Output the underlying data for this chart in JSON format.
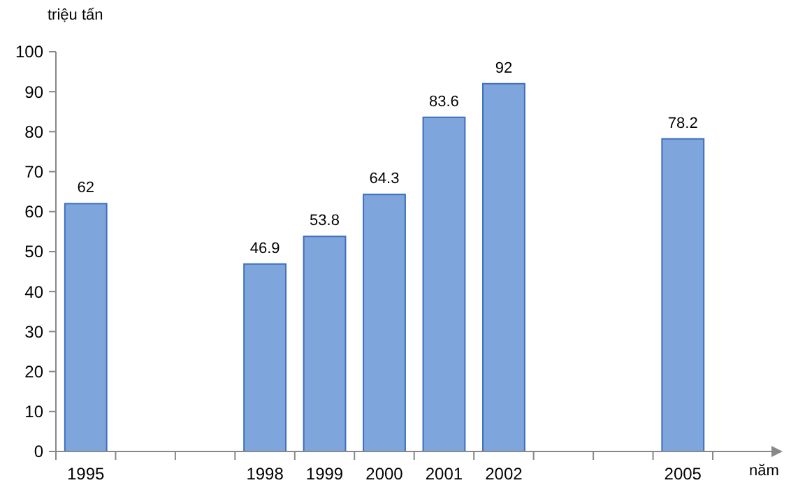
{
  "chart_data": {
    "type": "bar",
    "xlabel": "năm",
    "ylabel": "triệu tấn",
    "categories": [
      "1995",
      null,
      null,
      "1998",
      "1999",
      "2000",
      "2001",
      "2002",
      null,
      null,
      "2005"
    ],
    "values": [
      62,
      null,
      null,
      46.9,
      53.8,
      64.3,
      83.6,
      92,
      null,
      null,
      78.2
    ],
    "color": "#7fa6dc",
    "data_labels": true,
    "ylim": [
      0,
      100
    ],
    "yticks": [
      0,
      10,
      20,
      30,
      40,
      50,
      60,
      70,
      80,
      90,
      100
    ]
  }
}
